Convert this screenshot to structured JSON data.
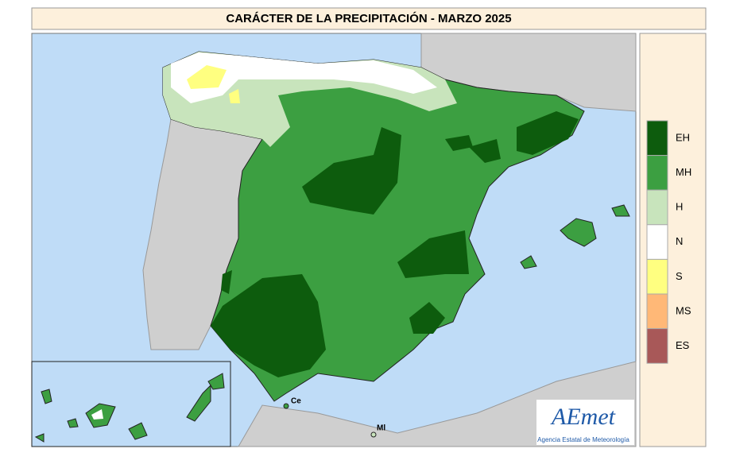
{
  "header": {
    "title": "CARÁCTER DE LA PRECIPITACIÓN - MARZO 2025"
  },
  "legend": [
    {
      "label": "EH",
      "color": "#0d5c0d"
    },
    {
      "label": "MH",
      "color": "#3c9f41"
    },
    {
      "label": "H",
      "color": "#c8e4bc"
    },
    {
      "label": "N",
      "color": "#ffffff"
    },
    {
      "label": "S",
      "color": "#ffff80"
    },
    {
      "label": "MS",
      "color": "#ffb877"
    },
    {
      "label": "ES",
      "color": "#a85858"
    }
  ],
  "map_labels": {
    "ceuta": "Ce",
    "melilla": "Ml"
  },
  "logo": {
    "name": "AEmet",
    "subtitle": "Agencia Estatal de Meteorología"
  }
}
